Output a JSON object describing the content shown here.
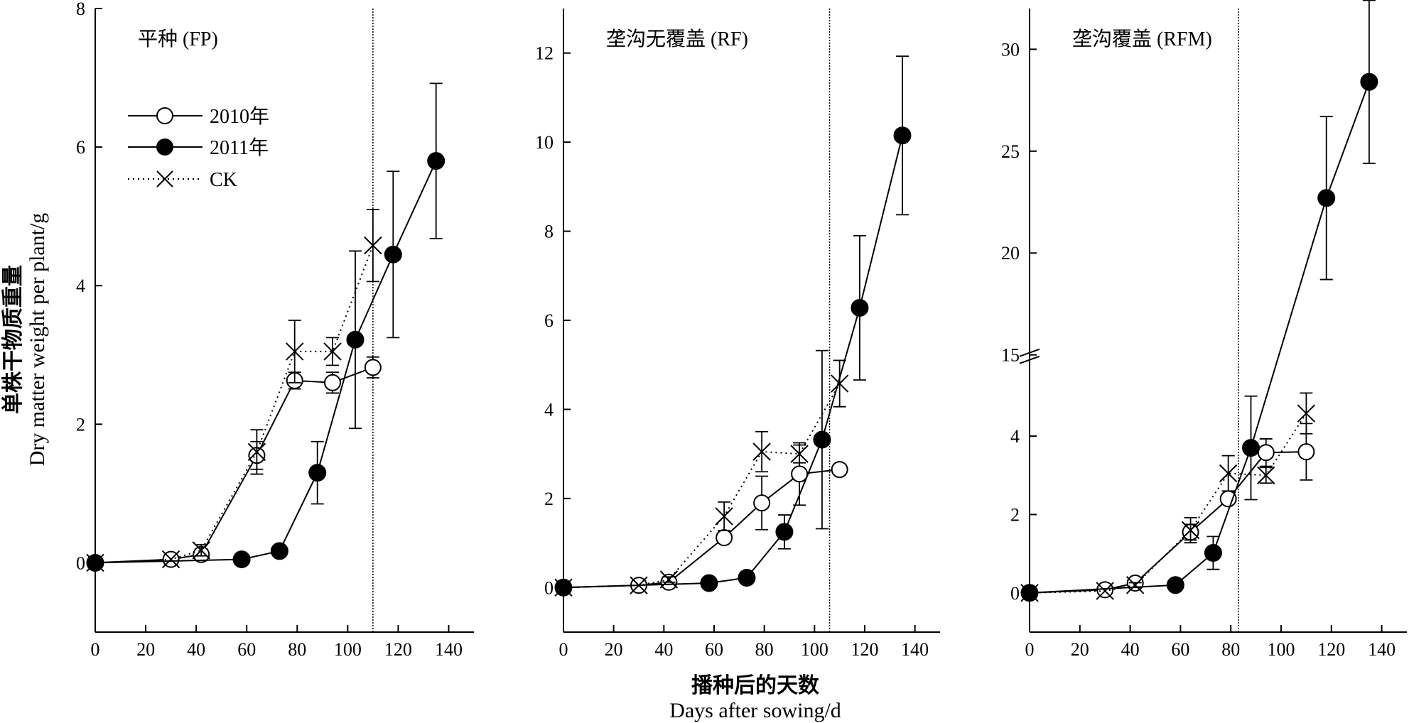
{
  "figure": {
    "ylabel_cn": "单株干物质重量",
    "ylabel_en": "Dry matter weight per plant/g",
    "xlabel_cn": "播种后的天数",
    "xlabel_en": "Days after sowing/d"
  },
  "legend": {
    "items": [
      {
        "label": "2010年",
        "marker": "open-circle",
        "line": "solid"
      },
      {
        "label": "2011年",
        "marker": "filled-circle",
        "line": "solid"
      },
      {
        "label": "CK",
        "marker": "x-cross",
        "line": "dotted"
      }
    ]
  },
  "chart_data": [
    {
      "type": "line",
      "title": "平种 (FP)",
      "xlim": [
        0,
        150
      ],
      "ylim": [
        -1,
        8
      ],
      "xticks": [
        0,
        20,
        40,
        60,
        80,
        100,
        120,
        140
      ],
      "yticks": [
        0,
        2,
        4,
        6,
        8
      ],
      "vline": 110,
      "series": [
        {
          "name": "2010年",
          "marker": "open-circle",
          "line": "solid",
          "x": [
            0,
            30,
            42,
            64,
            79,
            94,
            110
          ],
          "y": [
            0.0,
            0.05,
            0.12,
            1.55,
            2.63,
            2.6,
            2.82
          ],
          "err": [
            0,
            0,
            0.08,
            0.2,
            0.12,
            0.15,
            0.15
          ]
        },
        {
          "name": "2011年",
          "marker": "filled-circle",
          "line": "solid",
          "x": [
            0,
            58,
            73,
            88,
            103,
            118,
            135
          ],
          "y": [
            0.0,
            0.05,
            0.17,
            1.3,
            3.22,
            4.45,
            5.8
          ],
          "err": [
            0,
            0,
            0,
            0.45,
            1.28,
            1.2,
            1.12
          ]
        },
        {
          "name": "CK",
          "marker": "x-cross",
          "line": "dotted",
          "x": [
            0,
            30,
            42,
            64,
            79,
            94,
            110
          ],
          "y": [
            0.0,
            0.05,
            0.18,
            1.6,
            3.05,
            3.05,
            4.58
          ],
          "err": [
            0,
            0,
            0.08,
            0.32,
            0.45,
            0.2,
            0.52
          ]
        }
      ]
    },
    {
      "type": "line",
      "title": "垄沟无覆盖 (RF)",
      "xlim": [
        0,
        150
      ],
      "ylim": [
        -1,
        13
      ],
      "xticks": [
        0,
        20,
        40,
        60,
        80,
        100,
        120,
        140
      ],
      "yticks": [
        0,
        2,
        4,
        6,
        8,
        10,
        12
      ],
      "vline": 106,
      "series": [
        {
          "name": "2010年",
          "marker": "open-circle",
          "line": "solid",
          "x": [
            0,
            30,
            42,
            64,
            79,
            94,
            110
          ],
          "y": [
            0.0,
            0.05,
            0.12,
            1.12,
            1.9,
            2.55,
            2.65
          ],
          "err": [
            0,
            0,
            0.05,
            0.1,
            0.6,
            0.7,
            0.1
          ]
        },
        {
          "name": "2011年",
          "marker": "filled-circle",
          "line": "solid",
          "x": [
            0,
            58,
            73,
            88,
            103,
            118,
            135
          ],
          "y": [
            0.0,
            0.1,
            0.22,
            1.25,
            3.32,
            6.28,
            10.15
          ],
          "err": [
            0,
            0,
            0,
            0.38,
            2.0,
            1.62,
            1.78
          ]
        },
        {
          "name": "CK",
          "marker": "x-cross",
          "line": "dotted",
          "x": [
            0,
            30,
            42,
            64,
            79,
            94,
            110
          ],
          "y": [
            0.0,
            0.05,
            0.18,
            1.6,
            3.05,
            3.0,
            4.58
          ],
          "err": [
            0,
            0,
            0.06,
            0.32,
            0.45,
            0.2,
            0.52
          ]
        }
      ]
    },
    {
      "type": "line",
      "title": "垄沟覆盖 (RFM)",
      "xlim": [
        0,
        150
      ],
      "ylim": [
        -1,
        32
      ],
      "axis_break": {
        "lower_max": 6,
        "upper_min": 15
      },
      "xticks": [
        0,
        20,
        40,
        60,
        80,
        100,
        120,
        140
      ],
      "yticks": [
        0,
        2,
        4,
        15,
        20,
        25,
        30
      ],
      "vline": 83,
      "series": [
        {
          "name": "2010年",
          "marker": "open-circle",
          "line": "solid",
          "x": [
            0,
            30,
            42,
            64,
            79,
            94,
            110
          ],
          "y": [
            0.0,
            0.08,
            0.25,
            1.55,
            2.4,
            3.58,
            3.6
          ],
          "err": [
            0,
            0,
            0.06,
            0.2,
            0.12,
            0.35,
            0.72
          ]
        },
        {
          "name": "2011年",
          "marker": "filled-circle",
          "line": "solid",
          "x": [
            0,
            58,
            73,
            88,
            118,
            135
          ],
          "y": [
            0.0,
            0.2,
            1.02,
            3.7,
            22.7,
            28.4
          ],
          "err": [
            0,
            0,
            0.42,
            1.32,
            4.0,
            4.0
          ]
        },
        {
          "name": "CK",
          "marker": "x-cross",
          "line": "dotted",
          "x": [
            0,
            30,
            42,
            64,
            79,
            94,
            110
          ],
          "y": [
            0.0,
            0.05,
            0.2,
            1.6,
            3.05,
            3.0,
            4.58
          ],
          "err": [
            0,
            0,
            0.06,
            0.32,
            0.45,
            0.2,
            0.52
          ]
        }
      ]
    }
  ]
}
